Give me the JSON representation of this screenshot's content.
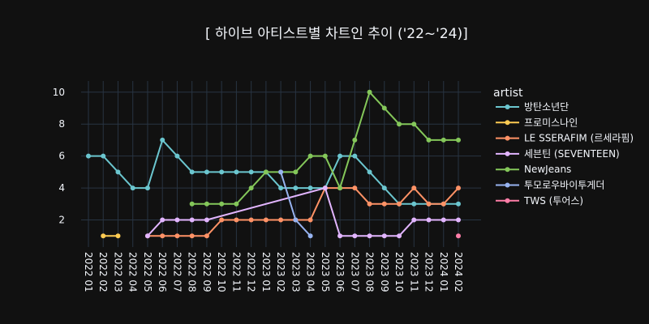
{
  "chart_data": {
    "type": "line",
    "title": "[ 하이브 아티스트별 차트인 추이 ('22~'24)]",
    "xlabel": "",
    "ylabel": "",
    "legend_title": "artist",
    "legend_position": "right",
    "grid": true,
    "ylim": [
      0.3,
      10.7
    ],
    "yticks": [
      2,
      4,
      6,
      8,
      10
    ],
    "categories": [
      "2022 01",
      "2022 02",
      "2022 03",
      "2022 04",
      "2022 05",
      "2022 06",
      "2022 07",
      "2022 08",
      "2022 09",
      "2022 10",
      "2022 11",
      "2022 12",
      "2023 01",
      "2023 02",
      "2023 03",
      "2023 04",
      "2023 05",
      "2023 06",
      "2023 07",
      "2023 08",
      "2023 09",
      "2023 10",
      "2023 11",
      "2023 12",
      "2024 01",
      "2024 02"
    ],
    "series": [
      {
        "name": "방탄소년단",
        "color": "#6BC6CF",
        "values": [
          6,
          6,
          5,
          4,
          4,
          7,
          6,
          5,
          5,
          5,
          5,
          5,
          5,
          4,
          4,
          4,
          4,
          6,
          6,
          5,
          4,
          3,
          3,
          3,
          3,
          3
        ]
      },
      {
        "name": "프로미스나인",
        "color": "#FECB52",
        "values": [
          null,
          1,
          1,
          null,
          null,
          null,
          null,
          null,
          null,
          null,
          null,
          null,
          null,
          null,
          null,
          null,
          null,
          null,
          null,
          null,
          null,
          null,
          null,
          null,
          null,
          null
        ]
      },
      {
        "name": "LE SSERAFIM (르세라핌)",
        "color": "#FF9266",
        "values": [
          null,
          null,
          null,
          null,
          1,
          1,
          1,
          1,
          1,
          2,
          2,
          2,
          2,
          2,
          2,
          2,
          4,
          4,
          4,
          3,
          3,
          3,
          4,
          3,
          3,
          4
        ]
      },
      {
        "name": "세븐틴 (SEVENTEEN)",
        "color": "#E2B5FF",
        "values": [
          null,
          null,
          null,
          null,
          1,
          2,
          2,
          2,
          2,
          null,
          null,
          null,
          null,
          null,
          null,
          null,
          4,
          1,
          1,
          1,
          1,
          1,
          2,
          2,
          2,
          2
        ]
      },
      {
        "name": "NewJeans",
        "color": "#84C75A",
        "values": [
          null,
          null,
          null,
          null,
          null,
          null,
          null,
          3,
          3,
          3,
          3,
          4,
          5,
          5,
          5,
          6,
          6,
          4,
          7,
          10,
          9,
          8,
          8,
          7,
          7,
          7
        ]
      },
      {
        "name": "투모로우바이투게더",
        "color": "#97B3F0",
        "values": [
          null,
          null,
          null,
          null,
          null,
          null,
          null,
          null,
          null,
          null,
          null,
          null,
          null,
          5,
          2,
          1,
          null,
          null,
          null,
          null,
          null,
          null,
          null,
          null,
          null,
          null
        ]
      },
      {
        "name": "TWS (투어스)",
        "color": "#FF7EA8",
        "values": [
          null,
          null,
          null,
          null,
          null,
          null,
          null,
          null,
          null,
          null,
          null,
          null,
          null,
          null,
          null,
          null,
          null,
          null,
          null,
          null,
          null,
          null,
          null,
          null,
          null,
          1
        ]
      }
    ]
  }
}
